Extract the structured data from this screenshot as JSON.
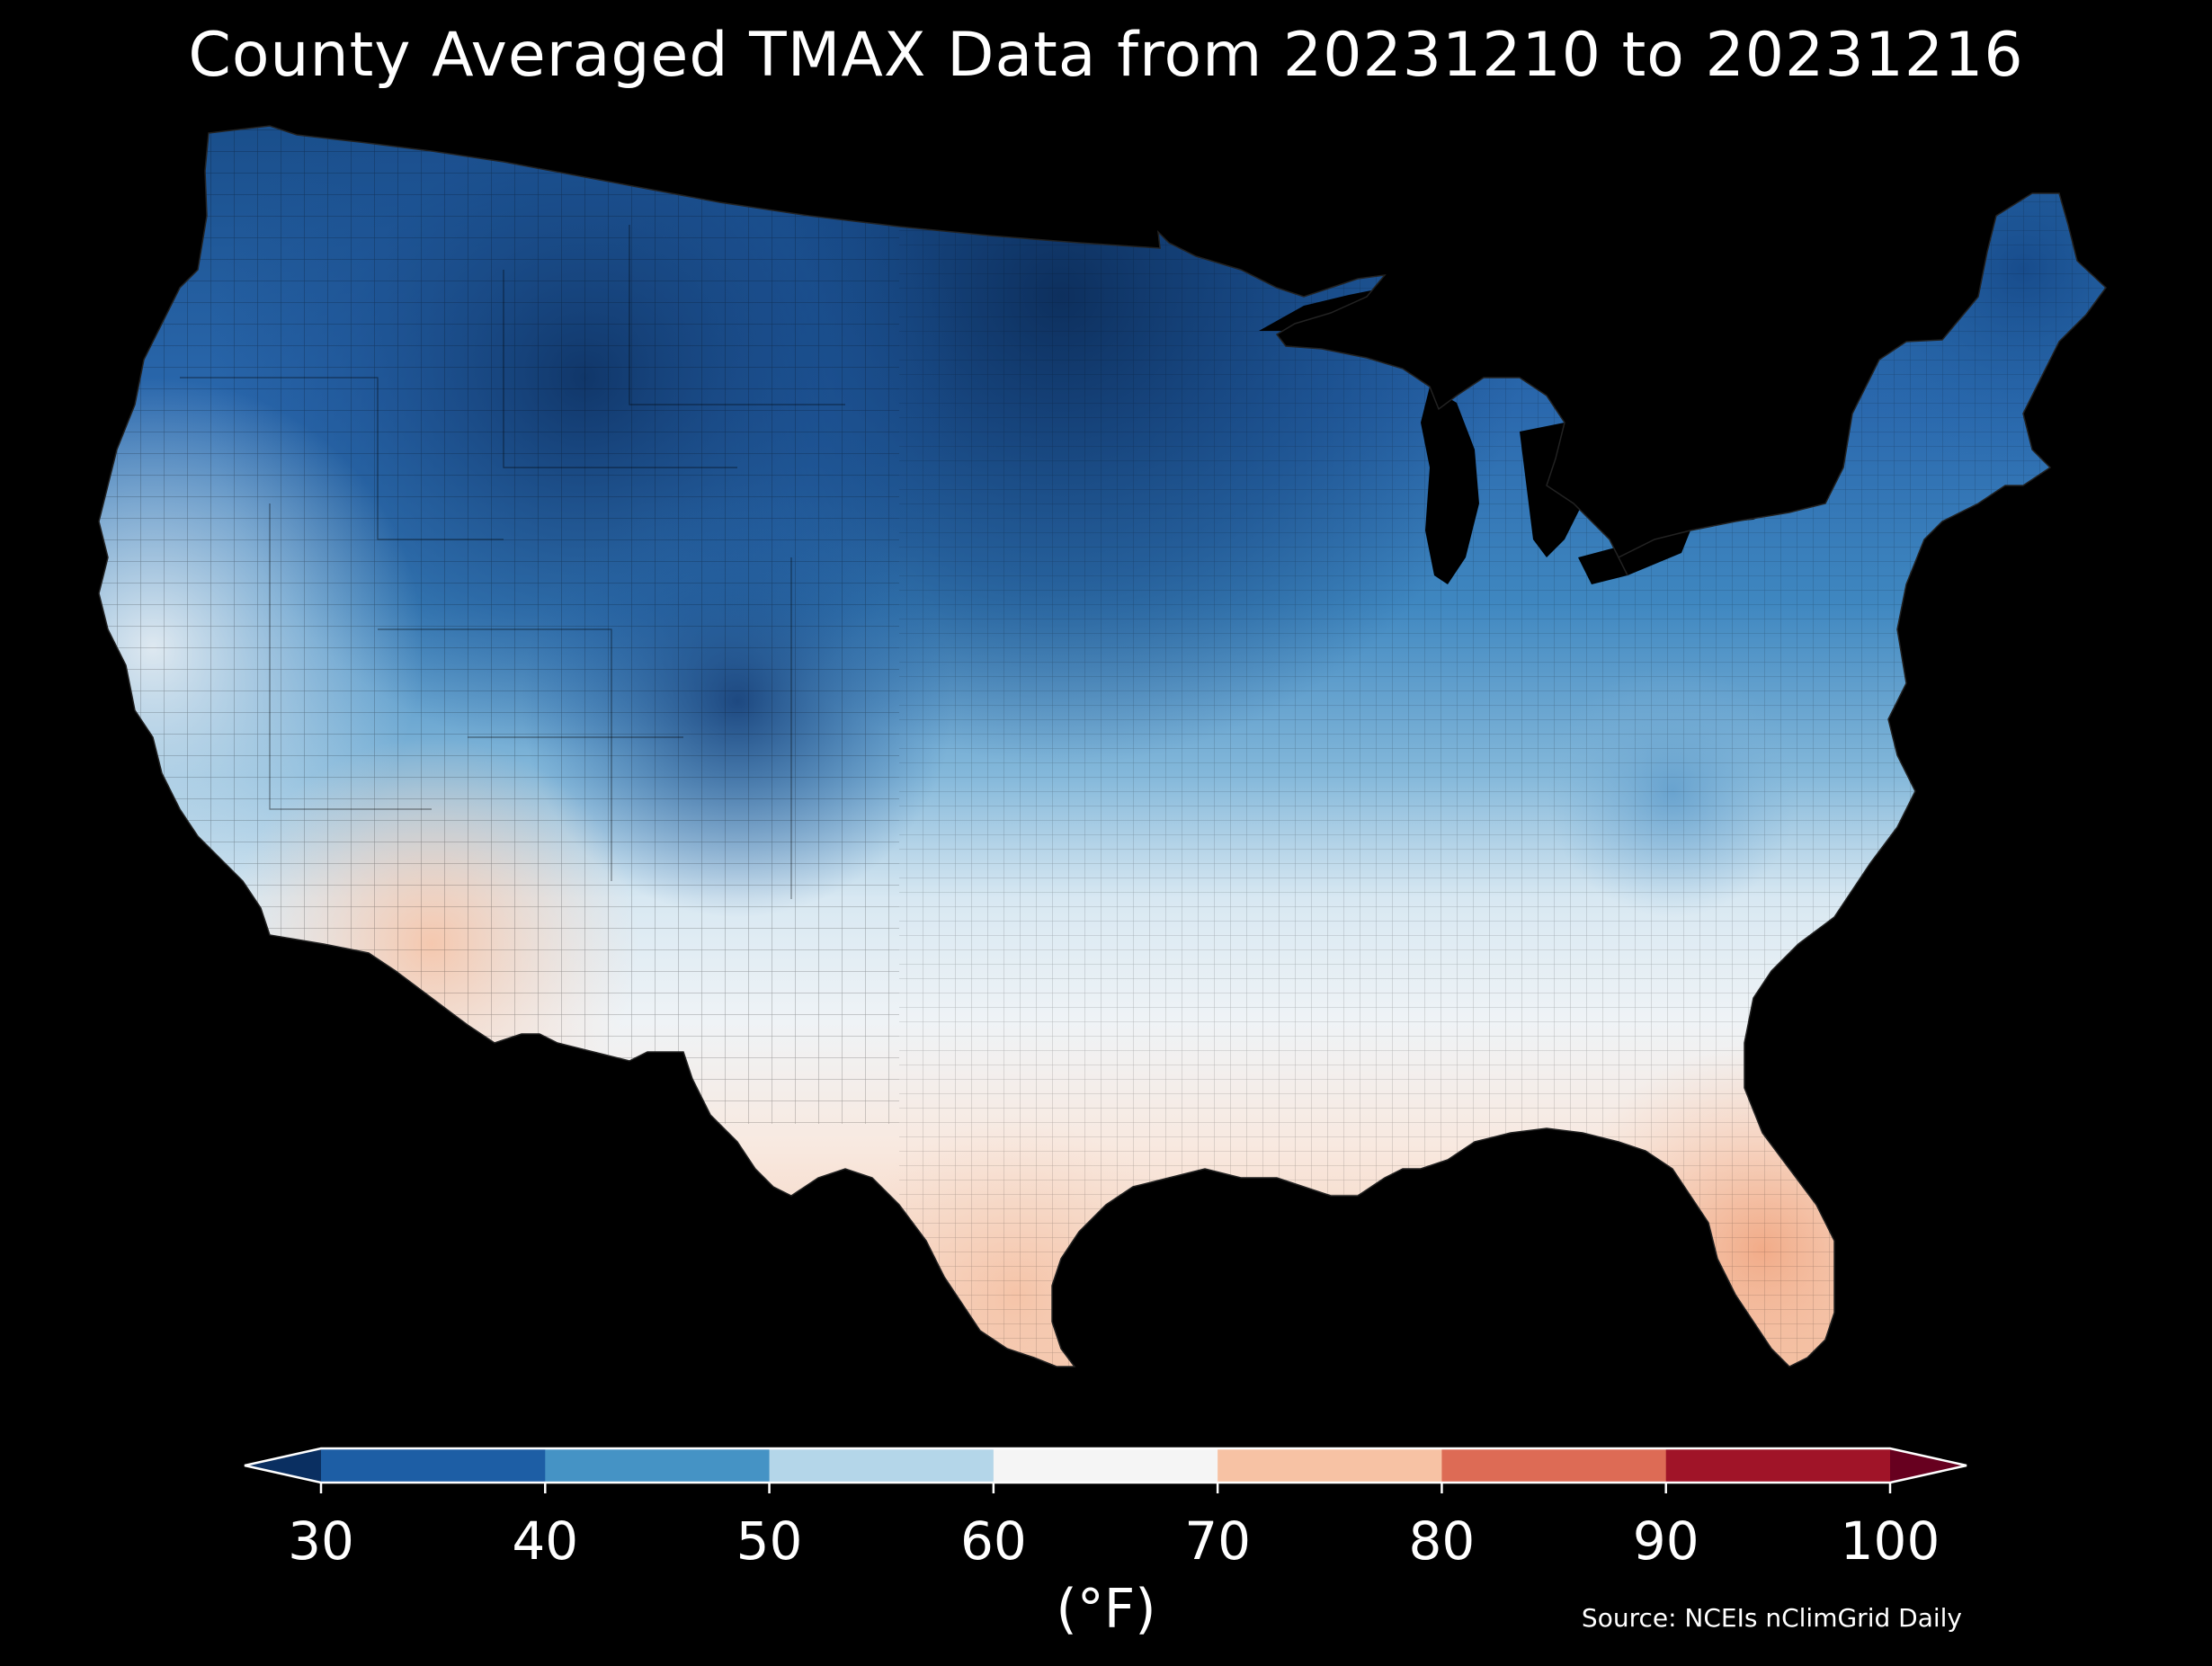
{
  "title": "County Averaged TMAX Data from 20231210 to 20231216",
  "colorbar": {
    "unit_label": "(°F)",
    "ticks": [
      "30",
      "40",
      "50",
      "60",
      "70",
      "80",
      "90",
      "100"
    ],
    "bins": [
      {
        "range": "<30",
        "color": "#0a2f61"
      },
      {
        "range": "30-40",
        "color": "#1d5ea5"
      },
      {
        "range": "40-50",
        "color": "#4593c5"
      },
      {
        "range": "50-60",
        "color": "#b4d6e9"
      },
      {
        "range": "60-70",
        "color": "#f5f5f5"
      },
      {
        "range": "70-80",
        "color": "#f7c2a4"
      },
      {
        "range": "80-90",
        "color": "#dd6b55"
      },
      {
        "range": "90-100",
        "color": "#a01428"
      },
      {
        "range": ">100",
        "color": "#67001f"
      }
    ],
    "extend": "both"
  },
  "source": "Source: NCEIs nClimGrid Daily",
  "map": {
    "region": "Contiguous United States",
    "variable": "TMAX",
    "background_color": "#000000",
    "regional_pattern": [
      {
        "region": "Northern Plains / Upper Midwest",
        "approx_F": 30
      },
      {
        "region": "Northern Rockies",
        "approx_F": 32
      },
      {
        "region": "Maine",
        "approx_F": 36
      },
      {
        "region": "Great Lakes",
        "approx_F": 40
      },
      {
        "region": "Central Plains",
        "approx_F": 46
      },
      {
        "region": "Mid-Atlantic",
        "approx_F": 52
      },
      {
        "region": "Pacific Northwest coast",
        "approx_F": 50
      },
      {
        "region": "Great Basin",
        "approx_F": 48
      },
      {
        "region": "Southern Plains",
        "approx_F": 60
      },
      {
        "region": "Gulf Coast",
        "approx_F": 66
      },
      {
        "region": "Southern California",
        "approx_F": 68
      },
      {
        "region": "Southern Arizona",
        "approx_F": 70
      },
      {
        "region": "South Texas",
        "approx_F": 72
      },
      {
        "region": "Florida Peninsula",
        "approx_F": 76
      }
    ]
  }
}
